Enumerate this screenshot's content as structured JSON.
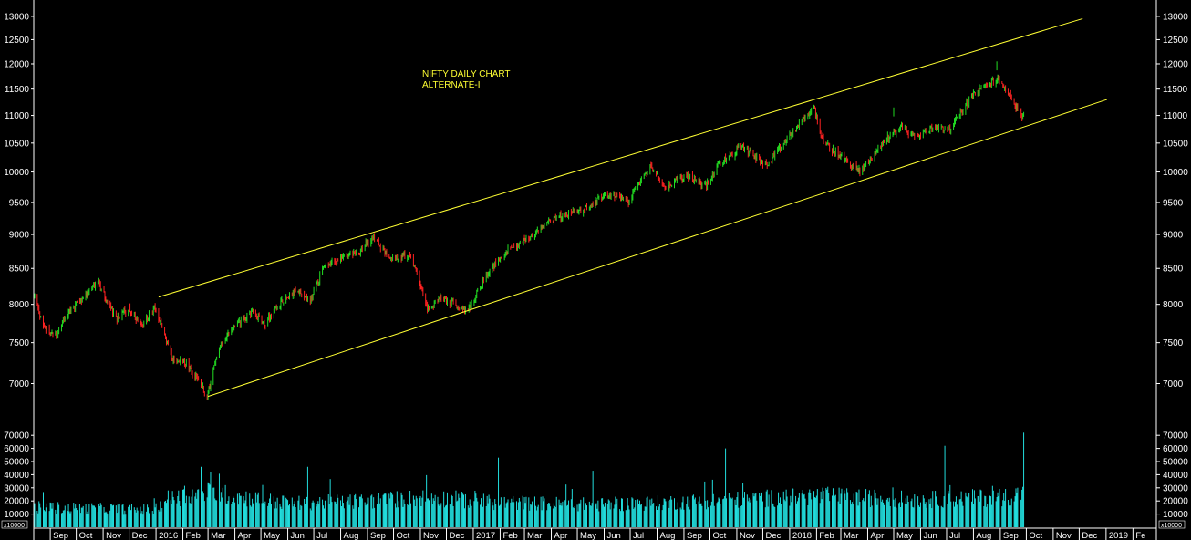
{
  "chart_data": {
    "type": "candlestick",
    "colors": {
      "background": "#000000",
      "up": "#22dd22",
      "down": "#ff2222",
      "trendline": "#ffff33",
      "volume": "#22dddd",
      "axis": "#ffffff"
    },
    "annotation": [
      "NIFTY DAILY CHART",
      "ALTERNATE-I"
    ],
    "price_axis": {
      "scale": "log",
      "range": [
        6700,
        13200
      ],
      "ticks": [
        7000,
        7500,
        8000,
        8500,
        9000,
        9500,
        10000,
        10500,
        11000,
        11500,
        12000,
        12500,
        13000
      ]
    },
    "volume_axis": {
      "range": [
        0,
        75000
      ],
      "ticks": [
        10000,
        20000,
        30000,
        40000,
        50000,
        60000,
        70000
      ],
      "unit_label": "x10000"
    },
    "x_axis": {
      "range": [
        "2015-08-14",
        "2019-02-28"
      ],
      "months": [
        {
          "label": "Sep",
          "date": "2015-09-01"
        },
        {
          "label": "Oct",
          "date": "2015-10-01"
        },
        {
          "label": "Nov",
          "date": "2015-11-01"
        },
        {
          "label": "Dec",
          "date": "2015-12-01"
        },
        {
          "label": "2016",
          "date": "2016-01-01"
        },
        {
          "label": "Feb",
          "date": "2016-02-01"
        },
        {
          "label": "Mar",
          "date": "2016-03-01"
        },
        {
          "label": "Apr",
          "date": "2016-04-01"
        },
        {
          "label": "May",
          "date": "2016-05-01"
        },
        {
          "label": "Jun",
          "date": "2016-06-01"
        },
        {
          "label": "Jul",
          "date": "2016-07-01"
        },
        {
          "label": "Aug",
          "date": "2016-08-01"
        },
        {
          "label": "Sep",
          "date": "2016-09-01"
        },
        {
          "label": "Oct",
          "date": "2016-10-01"
        },
        {
          "label": "Nov",
          "date": "2016-11-01"
        },
        {
          "label": "Dec",
          "date": "2016-12-01"
        },
        {
          "label": "2017",
          "date": "2017-01-01"
        },
        {
          "label": "Feb",
          "date": "2017-02-01"
        },
        {
          "label": "Mar",
          "date": "2017-03-01"
        },
        {
          "label": "Apr",
          "date": "2017-04-01"
        },
        {
          "label": "May",
          "date": "2017-05-01"
        },
        {
          "label": "Jun",
          "date": "2017-06-01"
        },
        {
          "label": "Jul",
          "date": "2017-07-01"
        },
        {
          "label": "Aug",
          "date": "2017-08-01"
        },
        {
          "label": "Sep",
          "date": "2017-09-01"
        },
        {
          "label": "Oct",
          "date": "2017-10-01"
        },
        {
          "label": "Nov",
          "date": "2017-11-01"
        },
        {
          "label": "Dec",
          "date": "2017-12-01"
        },
        {
          "label": "2018",
          "date": "2018-01-01"
        },
        {
          "label": "Feb",
          "date": "2018-02-01"
        },
        {
          "label": "Mar",
          "date": "2018-03-01"
        },
        {
          "label": "Apr",
          "date": "2018-04-01"
        },
        {
          "label": "May",
          "date": "2018-05-01"
        },
        {
          "label": "Jun",
          "date": "2018-06-01"
        },
        {
          "label": "Jul",
          "date": "2018-07-01"
        },
        {
          "label": "Aug",
          "date": "2018-08-01"
        },
        {
          "label": "Sep",
          "date": "2018-09-01"
        },
        {
          "label": "Oct",
          "date": "2018-10-01"
        },
        {
          "label": "Nov",
          "date": "2018-11-01"
        },
        {
          "label": "Dec",
          "date": "2018-12-01"
        },
        {
          "label": "2019",
          "date": "2019-01-01"
        },
        {
          "label": "Fe",
          "date": "2019-02-01"
        }
      ]
    },
    "price_path": [
      [
        "2015-08-14",
        8100
      ],
      [
        "2015-08-24",
        7700
      ],
      [
        "2015-09-08",
        7600
      ],
      [
        "2015-09-22",
        7900
      ],
      [
        "2015-10-05",
        8050
      ],
      [
        "2015-10-26",
        8300
      ],
      [
        "2015-11-16",
        7800
      ],
      [
        "2015-12-01",
        7950
      ],
      [
        "2015-12-16",
        7700
      ],
      [
        "2015-12-30",
        7950
      ],
      [
        "2016-01-20",
        7300
      ],
      [
        "2016-02-05",
        7250
      ],
      [
        "2016-02-29",
        6850
      ],
      [
        "2016-03-14",
        7450
      ],
      [
        "2016-04-01",
        7700
      ],
      [
        "2016-04-20",
        7900
      ],
      [
        "2016-05-06",
        7750
      ],
      [
        "2016-05-30",
        8100
      ],
      [
        "2016-06-15",
        8200
      ],
      [
        "2016-06-27",
        8050
      ],
      [
        "2016-07-12",
        8500
      ],
      [
        "2016-08-01",
        8650
      ],
      [
        "2016-08-20",
        8700
      ],
      [
        "2016-09-07",
        8950
      ],
      [
        "2016-09-28",
        8650
      ],
      [
        "2016-10-20",
        8700
      ],
      [
        "2016-11-09",
        7950
      ],
      [
        "2016-11-25",
        8100
      ],
      [
        "2016-12-26",
        7900
      ],
      [
        "2017-01-16",
        8400
      ],
      [
        "2017-02-08",
        8750
      ],
      [
        "2017-03-08",
        8950
      ],
      [
        "2017-04-05",
        9250
      ],
      [
        "2017-05-10",
        9400
      ],
      [
        "2017-06-05",
        9650
      ],
      [
        "2017-06-28",
        9500
      ],
      [
        "2017-07-25",
        10100
      ],
      [
        "2017-08-11",
        9750
      ],
      [
        "2017-09-05",
        9950
      ],
      [
        "2017-09-25",
        9750
      ],
      [
        "2017-10-10",
        10100
      ],
      [
        "2017-11-07",
        10450
      ],
      [
        "2017-12-06",
        10100
      ],
      [
        "2017-12-28",
        10550
      ],
      [
        "2018-01-29",
        11150
      ],
      [
        "2018-02-09",
        10500
      ],
      [
        "2018-03-23",
        10000
      ],
      [
        "2018-04-24",
        10600
      ],
      [
        "2018-05-10",
        10800
      ],
      [
        "2018-05-25",
        10600
      ],
      [
        "2018-06-18",
        10800
      ],
      [
        "2018-07-05",
        10750
      ],
      [
        "2018-08-01",
        11400
      ],
      [
        "2018-08-28",
        11700
      ],
      [
        "2018-09-10",
        11450
      ],
      [
        "2018-09-21",
        11100
      ],
      [
        "2018-09-28",
        10950
      ]
    ],
    "spikes": [
      [
        "2018-05-01",
        11150
      ],
      [
        "2018-08-28",
        12050
      ]
    ],
    "trendlines": [
      {
        "from": [
          "2016-01-04",
          8100
        ],
        "to": [
          "2018-12-05",
          12950
        ]
      },
      {
        "from": [
          "2016-03-01",
          6850
        ],
        "to": [
          "2019-01-02",
          11300
        ]
      }
    ],
    "volume_path": [
      [
        "2015-08-14",
        16000
      ],
      [
        "2015-12-31",
        14000
      ],
      [
        "2016-01-15",
        23000
      ],
      [
        "2016-03-01",
        28000
      ],
      [
        "2016-06-01",
        19000
      ],
      [
        "2016-09-01",
        21000
      ],
      [
        "2016-11-15",
        24000
      ],
      [
        "2017-01-15",
        20000
      ],
      [
        "2017-06-01",
        18000
      ],
      [
        "2017-10-01",
        21000
      ],
      [
        "2018-02-01",
        25000
      ],
      [
        "2018-06-01",
        22000
      ],
      [
        "2018-09-01",
        24000
      ],
      [
        "2018-09-28",
        27000
      ]
    ],
    "volume_peaks": [
      [
        "2016-02-22",
        46000
      ],
      [
        "2016-06-24",
        46000
      ],
      [
        "2017-01-30",
        53000
      ],
      [
        "2017-05-19",
        43000
      ],
      [
        "2017-10-19",
        60000
      ],
      [
        "2018-06-29",
        62000
      ],
      [
        "2018-09-28",
        72000
      ]
    ]
  }
}
